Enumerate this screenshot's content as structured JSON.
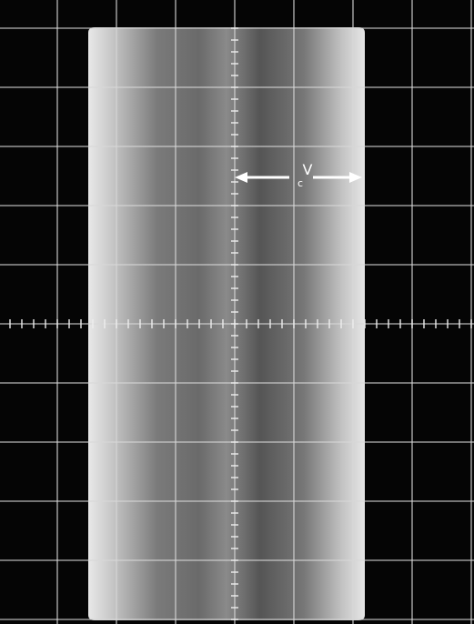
{
  "annotation": {
    "label": "V",
    "subscript": "c"
  }
}
